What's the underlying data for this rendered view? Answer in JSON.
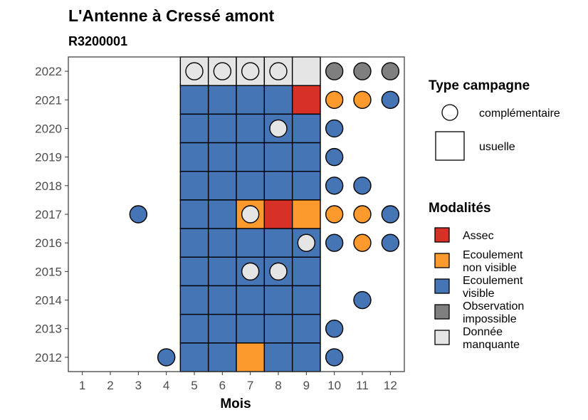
{
  "chart_data": {
    "type": "heatmap",
    "title": "L'Antenne à Cressé amont",
    "subtitle": "R3200001",
    "xlabel": "Mois",
    "ylabel": "",
    "x_ticks": [
      1,
      2,
      3,
      4,
      5,
      6,
      7,
      8,
      9,
      10,
      11,
      12
    ],
    "y_ticks": [
      2012,
      2013,
      2014,
      2015,
      2016,
      2017,
      2018,
      2019,
      2020,
      2021,
      2022
    ],
    "grid": false,
    "legend_placement": "right",
    "campaign_legend": {
      "title": "Type campagne",
      "items": [
        {
          "label": "complémentaire",
          "shape": "circle"
        },
        {
          "label": "usuelle",
          "shape": "square"
        }
      ]
    },
    "modality_legend": {
      "title": "Modalités",
      "items": [
        {
          "key": "assec",
          "lines": [
            "Assec"
          ],
          "color": "#d73027"
        },
        {
          "key": "nonvis",
          "lines": [
            "Ecoulement",
            "non visible"
          ],
          "color": "#fd9a2e"
        },
        {
          "key": "vis",
          "lines": [
            "Ecoulement",
            "visible"
          ],
          "color": "#4575b4"
        },
        {
          "key": "obs",
          "lines": [
            "Observation",
            "impossible"
          ],
          "color": "#7f7f7f"
        },
        {
          "key": "miss",
          "lines": [
            "Donnée",
            "manquante"
          ],
          "color": "#e5e5e5"
        }
      ]
    },
    "usual_cells": [
      {
        "year": 2022,
        "months": [
          "miss",
          "miss",
          "miss",
          "miss",
          "miss"
        ]
      },
      {
        "year": 2021,
        "months": [
          "vis",
          "vis",
          "vis",
          "vis",
          "assec"
        ]
      },
      {
        "year": 2020,
        "months": [
          "vis",
          "vis",
          "vis",
          "vis",
          "vis"
        ]
      },
      {
        "year": 2019,
        "months": [
          "vis",
          "vis",
          "vis",
          "vis",
          "vis"
        ]
      },
      {
        "year": 2018,
        "months": [
          "vis",
          "vis",
          "vis",
          "vis",
          "vis"
        ]
      },
      {
        "year": 2017,
        "months": [
          "vis",
          "vis",
          "nonvis",
          "assec",
          "nonvis"
        ]
      },
      {
        "year": 2016,
        "months": [
          "vis",
          "vis",
          "vis",
          "vis",
          "vis"
        ]
      },
      {
        "year": 2015,
        "months": [
          "vis",
          "vis",
          "vis",
          "vis",
          "vis"
        ]
      },
      {
        "year": 2014,
        "months": [
          "vis",
          "vis",
          "vis",
          "vis",
          "vis"
        ]
      },
      {
        "year": 2013,
        "months": [
          "vis",
          "vis",
          "vis",
          "vis",
          "vis"
        ]
      },
      {
        "year": 2012,
        "months": [
          "vis",
          "vis",
          "nonvis",
          "vis",
          "vis"
        ]
      }
    ],
    "usual_months": [
      5,
      6,
      7,
      8,
      9
    ],
    "complementary_points": [
      {
        "year": 2022,
        "month": 5,
        "mod": "miss"
      },
      {
        "year": 2022,
        "month": 6,
        "mod": "miss"
      },
      {
        "year": 2022,
        "month": 7,
        "mod": "miss"
      },
      {
        "year": 2022,
        "month": 8,
        "mod": "miss"
      },
      {
        "year": 2022,
        "month": 10,
        "mod": "obs"
      },
      {
        "year": 2022,
        "month": 11,
        "mod": "obs"
      },
      {
        "year": 2022,
        "month": 12,
        "mod": "obs"
      },
      {
        "year": 2021,
        "month": 10,
        "mod": "nonvis"
      },
      {
        "year": 2021,
        "month": 11,
        "mod": "nonvis"
      },
      {
        "year": 2021,
        "month": 12,
        "mod": "vis"
      },
      {
        "year": 2020,
        "month": 8,
        "mod": "miss"
      },
      {
        "year": 2020,
        "month": 10,
        "mod": "vis"
      },
      {
        "year": 2019,
        "month": 10,
        "mod": "vis"
      },
      {
        "year": 2018,
        "month": 10,
        "mod": "vis"
      },
      {
        "year": 2018,
        "month": 11,
        "mod": "vis"
      },
      {
        "year": 2017,
        "month": 3,
        "mod": "vis"
      },
      {
        "year": 2017,
        "month": 7,
        "mod": "miss"
      },
      {
        "year": 2017,
        "month": 10,
        "mod": "nonvis"
      },
      {
        "year": 2017,
        "month": 11,
        "mod": "nonvis"
      },
      {
        "year": 2017,
        "month": 12,
        "mod": "vis"
      },
      {
        "year": 2016,
        "month": 9,
        "mod": "miss"
      },
      {
        "year": 2016,
        "month": 10,
        "mod": "vis"
      },
      {
        "year": 2016,
        "month": 11,
        "mod": "nonvis"
      },
      {
        "year": 2016,
        "month": 12,
        "mod": "vis"
      },
      {
        "year": 2015,
        "month": 7,
        "mod": "miss"
      },
      {
        "year": 2015,
        "month": 8,
        "mod": "miss"
      },
      {
        "year": 2014,
        "month": 11,
        "mod": "vis"
      },
      {
        "year": 2013,
        "month": 10,
        "mod": "vis"
      },
      {
        "year": 2012,
        "month": 4,
        "mod": "vis"
      },
      {
        "year": 2012,
        "month": 10,
        "mod": "vis"
      }
    ]
  }
}
